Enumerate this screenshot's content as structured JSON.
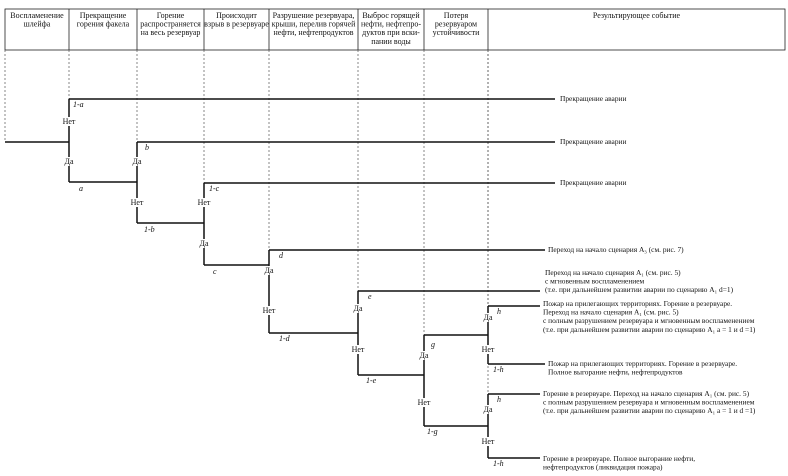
{
  "header": {
    "columns": [
      [
        "Воспламенение",
        "шлейфа"
      ],
      [
        "Прекращение",
        "горения факела"
      ],
      [
        "Горение",
        "распространяется",
        "на весь резервуар"
      ],
      [
        "Происходит",
        "взрыв в резервуаре"
      ],
      [
        "Разрушение резервуара,",
        "крыши, перелив горячей",
        "нефти, нефтепродуктов"
      ],
      [
        "Выброс горящей",
        "нефти, нефтепро-",
        "дуктов при вски-",
        "пании воды"
      ],
      [
        "Потеря",
        "резервуаром",
        "устойчивости"
      ],
      [
        "Результирующее событие"
      ]
    ]
  },
  "branch_labels": {
    "yes": "Да",
    "no": "Нет"
  },
  "probabilities": {
    "one_minus_a": "1-a",
    "a": "a",
    "b": "b",
    "one_minus_b": "1-b",
    "one_minus_c": "1-c",
    "c": "c",
    "d": "d",
    "one_minus_d": "1-d",
    "e": "e",
    "one_minus_e": "1-e",
    "g": "g",
    "one_minus_g": "1-g",
    "h": "h",
    "one_minus_h": "1-h"
  },
  "outcomes": [
    [
      "Прекращение аварии"
    ],
    [
      "Прекращение аварии"
    ],
    [
      "Прекращение аварии"
    ],
    [
      "Переход на начало сценария А₃ (см. рис. 7)"
    ],
    [
      "Переход на начало сценария А₁ (см. рис. 5)",
      "с мгновенным воспламенением",
      "(т.е. при дальнейшем развитии аварии по сценарию А₁ d=1)"
    ],
    [
      "Пожар на прилегающих территориях. Горение в резервуаре.",
      "Переход на начало сценария А₁ (см. рис. 5)",
      "с полным разрушением резервуара и мгновенным воспламенением",
      "(т.е. при дальнейшем развитии аварии по сценарию А₁ a = 1 и d =1)"
    ],
    [
      "Пожар на прилегающих территориях. Горение в резервуаре.",
      "Полное выгорание нефти, нефтепродуктов"
    ],
    [
      "Горение в резервуаре. Переход на начало сценария А₁ (см. рис. 5)",
      "с полным разрушением резервуара и мгновенным воспламенением",
      "(т.е. при дальнейшем развитии аварии по сценарию А₁ a = 1 и d =1)"
    ],
    [
      "Горение в резервуаре. Полное выгорание нефти,",
      "нефтепродуктов (ликвидация пожара)"
    ]
  ]
}
